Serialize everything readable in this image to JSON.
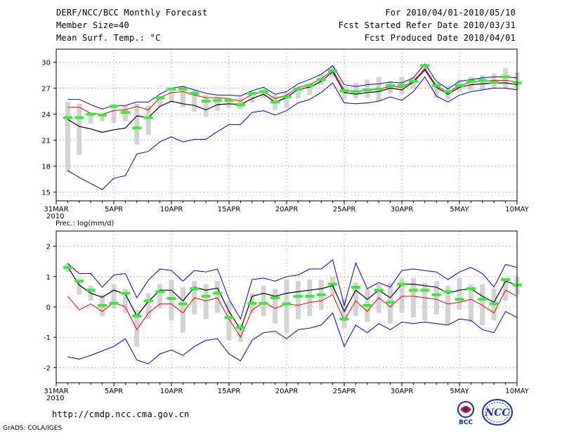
{
  "header": {
    "title": "DERF/NCC/BCC Monthly Forecast",
    "member_size": "Member Size=40",
    "variable": "Mean Surf. Temp.: °C",
    "period": "For 2010/04/01-2010/05/10",
    "refer_date": "Fcst Started Refer Date 2010/03/31",
    "produced_date": "Fcst Produced Date 2010/04/01"
  },
  "footer": {
    "url": "http://cmdp.ncc.cma.gov.cn",
    "credit": "GrADS: COLA/IGES",
    "logo_bcc": "BCC",
    "logo_ncc": "NCC"
  },
  "colors": {
    "box": "#d3d3d3",
    "median": "#33ee33",
    "mean": "#000000",
    "red": "#ee0000",
    "blue": "#0000cc",
    "grid": "#888888"
  },
  "chart_data": [
    {
      "type": "line",
      "title": "Mean Surf. Temp.: °C",
      "xlabel": "",
      "ylabel": "°C",
      "x_tick_labels": [
        "31MAR",
        "5APR",
        "10APR",
        "15APR",
        "20APR",
        "25APR",
        "30APR",
        "5MAY",
        "10MAY"
      ],
      "x_tick_days": [
        0,
        5,
        10,
        15,
        20,
        25,
        30,
        35,
        40
      ],
      "x_year_label": "2010",
      "ylim": [
        14,
        31.5
      ],
      "y_ticks": [
        15,
        18,
        21,
        24,
        27,
        30
      ],
      "days": [
        1,
        2,
        3,
        4,
        5,
        6,
        7,
        8,
        9,
        10,
        11,
        12,
        13,
        14,
        15,
        16,
        17,
        18,
        19,
        20,
        21,
        22,
        23,
        24,
        25,
        26,
        27,
        28,
        29,
        30,
        31,
        32,
        33,
        34,
        35,
        36,
        37,
        38,
        39,
        40
      ],
      "series": [
        {
          "name": "max",
          "color": "blue",
          "values": [
            25.7,
            25.7,
            25.1,
            24.6,
            25.0,
            25.0,
            25.4,
            25.4,
            26.3,
            27.0,
            27.2,
            26.8,
            26.4,
            26.2,
            26.2,
            26.1,
            26.7,
            27.1,
            26.3,
            26.6,
            27.5,
            28.0,
            28.6,
            29.6,
            27.4,
            27.2,
            27.4,
            27.5,
            27.7,
            27.6,
            28.2,
            29.8,
            27.8,
            26.9,
            27.8,
            28.0,
            28.2,
            28.3,
            28.3,
            28.2
          ]
        },
        {
          "name": "upper",
          "color": "red",
          "values": [
            24.8,
            24.8,
            24.1,
            24.0,
            24.4,
            24.5,
            24.9,
            24.5,
            25.9,
            26.5,
            26.6,
            26.2,
            25.9,
            25.9,
            25.8,
            25.5,
            26.3,
            26.6,
            25.8,
            26.2,
            27.1,
            27.4,
            28.1,
            29.1,
            26.8,
            26.6,
            26.8,
            26.9,
            27.2,
            27.1,
            27.8,
            29.3,
            27.3,
            26.5,
            27.3,
            27.7,
            27.8,
            27.9,
            27.9,
            27.7
          ]
        },
        {
          "name": "mean",
          "color": "mean",
          "values": [
            23.4,
            22.6,
            22.3,
            21.9,
            22.2,
            22.4,
            23.8,
            23.6,
            24.9,
            25.5,
            25.2,
            25.0,
            24.5,
            25.1,
            25.2,
            25.1,
            25.8,
            26.3,
            25.4,
            25.9,
            26.9,
            27.1,
            27.8,
            28.9,
            26.5,
            26.3,
            26.5,
            26.6,
            27.0,
            26.8,
            27.7,
            29.1,
            27.1,
            26.3,
            27.1,
            27.4,
            27.5,
            27.6,
            27.6,
            27.4
          ]
        },
        {
          "name": "min",
          "color": "blue",
          "values": [
            17.5,
            16.7,
            16.0,
            15.3,
            16.6,
            16.9,
            19.4,
            19.7,
            20.8,
            21.4,
            20.8,
            21.1,
            21.1,
            22.0,
            22.8,
            22.8,
            24.2,
            24.4,
            23.9,
            24.4,
            25.3,
            25.7,
            26.5,
            27.6,
            25.3,
            25.2,
            25.3,
            25.5,
            26.0,
            25.6,
            26.6,
            28.3,
            26.1,
            25.4,
            26.2,
            26.6,
            26.8,
            27.0,
            27.0,
            26.8
          ]
        }
      ],
      "box_low": [
        17.3,
        19.3,
        22.9,
        23.2,
        23.0,
        23.2,
        20.5,
        21.6,
        24.9,
        25.3,
        24.8,
        24.3,
        23.7,
        24.4,
        24.7,
        24.6,
        25.3,
        25.9,
        24.5,
        24.7,
        25.8,
        26.2,
        27.4,
        28.3,
        25.7,
        25.8,
        25.9,
        25.5,
        26.4,
        26.3,
        27.0,
        28.9,
        25.9,
        25.7,
        26.5,
        26.8,
        26.8,
        27.0,
        26.9,
        26.8
      ],
      "box_high": [
        25.4,
        25.2,
        24.2,
        24.0,
        25.2,
        25.0,
        25.2,
        25.0,
        26.0,
        26.7,
        27.3,
        26.8,
        26.2,
        26.0,
        25.6,
        25.9,
        26.3,
        26.9,
        26.2,
        26.5,
        27.0,
        27.6,
        28.6,
        29.6,
        27.2,
        27.6,
        28.0,
        28.3,
        27.8,
        28.3,
        28.3,
        29.8,
        27.6,
        27.3,
        28.0,
        28.3,
        28.5,
        28.7,
        29.3,
        28.8
      ],
      "median": [
        23.6,
        23.6,
        24.0,
        23.9,
        24.9,
        24.2,
        22.4,
        23.6,
        25.9,
        26.9,
        26.9,
        26.4,
        25.5,
        25.6,
        25.6,
        25.1,
        26.4,
        26.6,
        25.4,
        26.0,
        26.9,
        27.3,
        28.0,
        29.0,
        26.7,
        26.6,
        26.8,
        26.9,
        27.3,
        27.3,
        27.8,
        29.6,
        27.3,
        26.6,
        27.3,
        27.8,
        27.9,
        27.7,
        28.3,
        27.6
      ]
    },
    {
      "type": "line",
      "title": "Prec.: log(mm/d)",
      "xlabel": "",
      "ylabel": "log(mm/d)",
      "x_tick_labels": [
        "31MAR",
        "5APR",
        "10APR",
        "15APR",
        "20APR",
        "25APR",
        "30APR",
        "5MAY",
        "10MAY"
      ],
      "x_tick_days": [
        0,
        5,
        10,
        15,
        20,
        25,
        30,
        35,
        40
      ],
      "x_year_label": "2010",
      "ylim": [
        -2.5,
        2.5
      ],
      "y_ticks": [
        -2,
        -1,
        0,
        1,
        2
      ],
      "days": [
        1,
        2,
        3,
        4,
        5,
        6,
        7,
        8,
        9,
        10,
        11,
        12,
        13,
        14,
        15,
        16,
        17,
        18,
        19,
        20,
        21,
        22,
        23,
        24,
        25,
        26,
        27,
        28,
        29,
        30,
        31,
        32,
        33,
        34,
        35,
        36,
        37,
        38,
        39,
        40
      ],
      "series": [
        {
          "name": "max",
          "color": "blue",
          "values": [
            1.43,
            1.1,
            1.1,
            0.65,
            1.05,
            1.1,
            0.3,
            0.88,
            1.25,
            1.2,
            0.85,
            1.2,
            1.15,
            1.25,
            0.25,
            -0.4,
            0.9,
            0.95,
            0.85,
            1.0,
            1.05,
            1.25,
            1.25,
            1.55,
            0.05,
            1.45,
            0.6,
            0.8,
            0.65,
            1.2,
            1.25,
            1.2,
            1.15,
            0.9,
            1.15,
            1.3,
            1.1,
            0.65,
            1.4,
            1.3
          ]
        },
        {
          "name": "mean",
          "color": "mean",
          "values": [
            1.32,
            0.72,
            0.45,
            0.32,
            0.55,
            0.42,
            -0.3,
            0.18,
            0.55,
            0.55,
            0.2,
            0.65,
            0.55,
            0.62,
            -0.15,
            -0.75,
            0.35,
            0.45,
            0.35,
            0.45,
            0.5,
            0.55,
            0.6,
            0.7,
            -0.15,
            0.55,
            0.25,
            0.55,
            0.3,
            0.75,
            0.75,
            0.7,
            0.65,
            0.45,
            0.55,
            0.6,
            0.35,
            0.15,
            0.85,
            0.72
          ]
        },
        {
          "name": "lower",
          "color": "red",
          "values": [
            0.35,
            -0.1,
            0.1,
            -0.15,
            0.15,
            0.0,
            -0.75,
            -0.2,
            0.1,
            0.1,
            -0.2,
            0.3,
            0.2,
            0.3,
            -0.4,
            -1.0,
            -0.1,
            0.15,
            -0.05,
            0.1,
            0.05,
            0.15,
            0.2,
            0.4,
            -0.45,
            0.2,
            -0.15,
            0.3,
            0.0,
            0.35,
            0.35,
            0.3,
            0.25,
            0.1,
            0.15,
            0.25,
            0.05,
            -0.2,
            0.55,
            0.35
          ]
        },
        {
          "name": "min",
          "color": "blue",
          "values": [
            -1.65,
            -1.72,
            -1.6,
            -1.45,
            -1.3,
            -1.05,
            -1.75,
            -1.88,
            -1.55,
            -1.42,
            -1.6,
            -1.3,
            -1.1,
            -1.05,
            -1.55,
            -1.78,
            -1.1,
            -0.85,
            -0.8,
            -1.05,
            -0.75,
            -0.7,
            -0.6,
            -0.2,
            -1.3,
            -0.6,
            -0.85,
            -0.55,
            -0.75,
            -0.5,
            -0.55,
            -0.5,
            -0.55,
            -0.6,
            -0.4,
            -0.45,
            -0.75,
            -0.85,
            -0.15,
            -0.35
          ]
        }
      ],
      "box_low": [
        1.15,
        0.4,
        0.2,
        -0.3,
        -0.05,
        -0.2,
        -1.32,
        -0.4,
        -0.05,
        -0.45,
        -0.85,
        -0.25,
        -0.4,
        -0.2,
        -1.1,
        -1.15,
        -0.2,
        -0.3,
        -0.55,
        -0.85,
        -0.4,
        -0.3,
        -0.1,
        0.4,
        -0.7,
        -0.3,
        -0.5,
        -0.2,
        -0.55,
        -0.2,
        -0.35,
        -0.45,
        -0.25,
        -0.6,
        -0.1,
        -0.5,
        -0.6,
        -0.45,
        0.2,
        0.4
      ],
      "box_high": [
        1.45,
        0.9,
        0.7,
        0.4,
        0.75,
        0.6,
        -0.1,
        0.45,
        0.75,
        0.9,
        0.65,
        0.85,
        0.75,
        0.85,
        0.2,
        -0.55,
        0.45,
        0.7,
        0.6,
        0.9,
        0.85,
        0.9,
        0.9,
        1.0,
        0.25,
        0.8,
        0.6,
        0.75,
        0.8,
        0.95,
        0.95,
        0.8,
        0.85,
        0.7,
        0.95,
        0.75,
        0.75,
        0.6,
        0.95,
        1.0
      ],
      "median": [
        1.3,
        0.85,
        0.55,
        0.05,
        0.12,
        0.45,
        -0.3,
        0.2,
        0.5,
        0.28,
        0.1,
        0.6,
        0.35,
        0.45,
        -0.35,
        -0.68,
        0.12,
        0.12,
        0.3,
        0.1,
        0.35,
        0.35,
        0.4,
        0.75,
        -0.4,
        0.65,
        0.05,
        0.55,
        0.15,
        0.75,
        0.55,
        0.55,
        0.4,
        0.5,
        0.25,
        0.6,
        0.25,
        0.1,
        0.9,
        0.72
      ]
    }
  ]
}
